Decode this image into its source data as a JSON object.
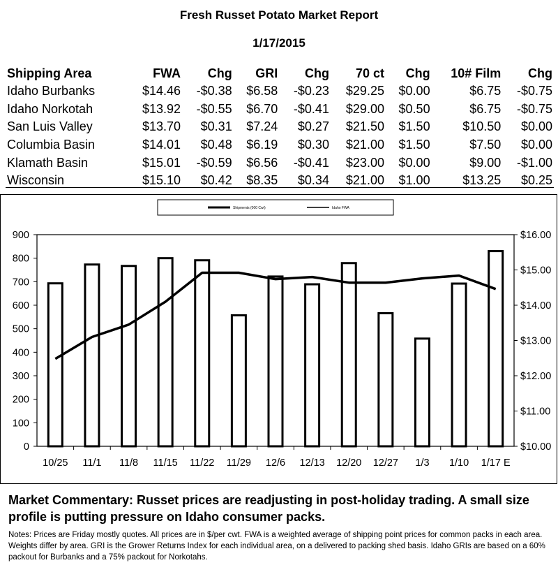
{
  "report": {
    "title": "Fresh Russet Potato Market Report",
    "date": "1/17/2015"
  },
  "table": {
    "headers": [
      "Shipping Area",
      "FWA",
      "Chg",
      "GRI",
      "Chg",
      "70 ct",
      "Chg",
      "10# Film",
      "Chg"
    ],
    "rows": [
      [
        "Idaho Burbanks",
        "$14.46",
        "-$0.38",
        "$6.58",
        "-$0.23",
        "$29.25",
        "$0.00",
        "$6.75",
        "-$0.75"
      ],
      [
        "Idaho Norkotah",
        "$13.92",
        "-$0.55",
        "$6.70",
        "-$0.41",
        "$29.00",
        "$0.50",
        "$6.75",
        "-$0.75"
      ],
      [
        "San Luis Valley",
        "$13.70",
        "$0.31",
        "$7.24",
        "$0.27",
        "$21.50",
        "$1.50",
        "$10.50",
        "$0.00"
      ],
      [
        "Columbia Basin",
        "$14.01",
        "$0.48",
        "$6.19",
        "$0.30",
        "$21.00",
        "$1.50",
        "$7.50",
        "$0.00"
      ],
      [
        "Klamath Basin",
        "$15.01",
        "-$0.59",
        "$6.56",
        "-$0.41",
        "$23.00",
        "$0.00",
        "$9.00",
        "-$1.00"
      ],
      [
        "Wisconsin",
        "$15.10",
        "$0.42",
        "$8.35",
        "$0.34",
        "$21.00",
        "$1.00",
        "$13.25",
        "$0.25"
      ]
    ]
  },
  "chart_data": {
    "type": "bar",
    "categories": [
      "10/25",
      "11/1",
      "11/8",
      "11/15",
      "11/22",
      "11/29",
      "12/6",
      "12/13",
      "12/20",
      "12/27",
      "1/3",
      "1/10",
      "1/17 E"
    ],
    "series": [
      {
        "name": "Shipments (000 Cwt)",
        "type": "bar",
        "axis": "left",
        "values": [
          693,
          773,
          767,
          800,
          791,
          557,
          722,
          689,
          779,
          566,
          458,
          692,
          830
        ]
      },
      {
        "name": "Idaho FWA",
        "type": "line",
        "axis": "right",
        "values": [
          12.48,
          13.1,
          13.45,
          14.1,
          14.92,
          14.92,
          14.74,
          14.8,
          14.64,
          14.64,
          14.76,
          14.84,
          14.46
        ]
      }
    ],
    "y_left": {
      "ylim": [
        0,
        900
      ],
      "ticks": [
        "0",
        "100",
        "200",
        "300",
        "400",
        "500",
        "600",
        "700",
        "800",
        "900"
      ]
    },
    "y_right": {
      "ylim": [
        10,
        16
      ],
      "ticks": [
        "$10.00",
        "$11.00",
        "$12.00",
        "$13.00",
        "$14.00",
        "$15.00",
        "$16.00"
      ]
    },
    "legend_position": "top-center",
    "grid": false
  },
  "commentary": "Market Commentary: Russet prices are readjusting in post-holiday trading. A small size profile is putting pressure on Idaho consumer packs.",
  "notes": "Notes: Prices are Friday mostly quotes. All prices are in $/per cwt. FWA is a weighted average of shipping point prices for  common packs in each area. Weights differ by area. GRI is the Grower Returns Index for each individual area, on a delivered to packing shed basis. Idaho GRIs are based on a 60% packout for Burbanks and a 75% packout for Norkotahs."
}
